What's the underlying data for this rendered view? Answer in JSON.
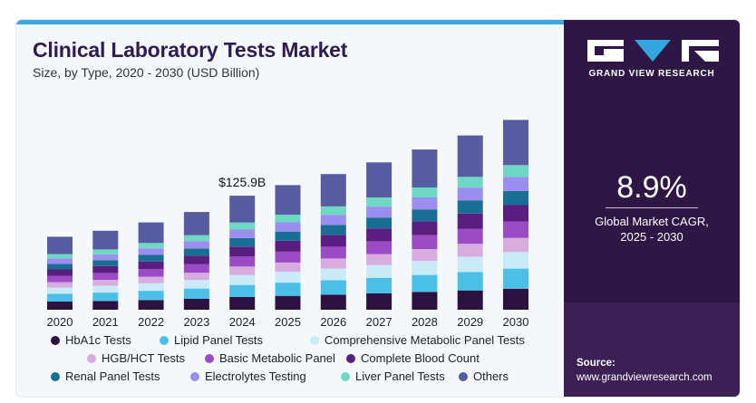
{
  "header": {
    "title": "Clinical Laboratory Tests Market",
    "subtitle": "Size, by Type, 2020 - 2030 (USD Billion)"
  },
  "sidebar": {
    "brand": "GRAND VIEW RESEARCH",
    "cagr_value": "8.9%",
    "cagr_label_line1": "Global Market CAGR,",
    "cagr_label_line2": "2025 - 2030",
    "source_label": "Source:",
    "source_url": "www.grandviewresearch.com"
  },
  "colors": {
    "background": "#f4f8fb",
    "title": "#2f1b4f",
    "side_panel": "#3b1f55",
    "top_bar": "#3aa8e2"
  },
  "chart_data": {
    "type": "bar",
    "stacked": true,
    "title": "Clinical Laboratory Tests Market",
    "subtitle": "Size, by Type, 2020 - 2030 (USD Billion)",
    "categories": [
      "2020",
      "2021",
      "2022",
      "2023",
      "2024",
      "2025",
      "2026",
      "2027",
      "2028",
      "2029",
      "2030"
    ],
    "totals": [
      80.6,
      87.2,
      96.4,
      107.9,
      125.9,
      137.6,
      149.8,
      162.7,
      177.0,
      192.4,
      209.6
    ],
    "annotations": [
      {
        "category": "2024",
        "text": "$125.9B"
      }
    ],
    "series": [
      {
        "name": "HbA1c Tests",
        "color": "#2b1240",
        "values": [
          9.0,
          9.7,
          10.7,
          12.0,
          14.0,
          15.3,
          16.6,
          18.0,
          19.6,
          21.3,
          23.2
        ]
      },
      {
        "name": "Lipid Panel Tests",
        "color": "#4bbfe8",
        "values": [
          8.5,
          9.2,
          10.2,
          11.4,
          13.3,
          14.6,
          15.9,
          17.2,
          18.8,
          20.4,
          22.2
        ]
      },
      {
        "name": "Comprehensive Metabolic Panel Tests",
        "color": "#c9ebf7",
        "values": [
          7.0,
          7.6,
          8.4,
          9.4,
          11.0,
          12.0,
          13.0,
          14.2,
          15.4,
          16.8,
          18.3
        ]
      },
      {
        "name": "HGB/HCT Tests",
        "color": "#d7addf",
        "values": [
          6.0,
          6.5,
          7.2,
          8.0,
          9.4,
          10.2,
          11.1,
          12.1,
          13.2,
          14.3,
          15.6
        ]
      },
      {
        "name": "Basic Metabolic Panel",
        "color": "#9b4cc4",
        "values": [
          7.0,
          7.6,
          8.4,
          9.4,
          11.0,
          12.0,
          13.0,
          14.1,
          15.3,
          16.7,
          18.1
        ]
      },
      {
        "name": "Complete Blood Count",
        "color": "#5a1d80",
        "values": [
          7.0,
          7.6,
          8.4,
          9.4,
          11.0,
          12.0,
          13.0,
          14.1,
          15.3,
          16.7,
          18.1
        ]
      },
      {
        "name": "Renal Panel Tests",
        "color": "#1b6e93",
        "values": [
          6.0,
          6.5,
          7.2,
          8.0,
          9.4,
          10.2,
          11.1,
          12.1,
          13.2,
          14.3,
          15.6
        ]
      },
      {
        "name": "Electrolytes Testing",
        "color": "#9b8ef0",
        "values": [
          6.0,
          6.5,
          7.2,
          8.0,
          9.4,
          10.2,
          11.1,
          12.1,
          13.2,
          14.3,
          15.6
        ]
      },
      {
        "name": "Liver Panel Tests",
        "color": "#6fd8c4",
        "values": [
          5.0,
          5.4,
          6.0,
          6.7,
          7.8,
          8.5,
          9.3,
          10.1,
          11.0,
          11.9,
          13.0
        ]
      },
      {
        "name": "Others",
        "color": "#575ba0",
        "values": [
          19.1,
          20.6,
          22.7,
          25.6,
          29.6,
          32.6,
          35.7,
          38.7,
          41.9,
          45.7,
          49.9
        ]
      }
    ],
    "legend_placement": "bottom",
    "grid": false
  }
}
